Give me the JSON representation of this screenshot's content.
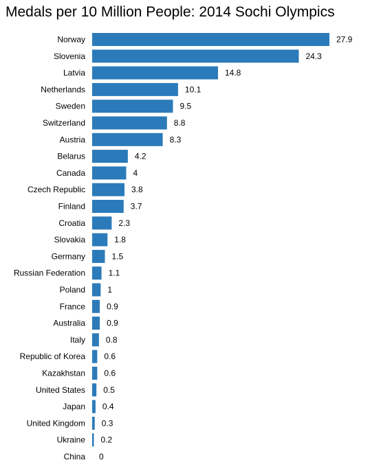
{
  "colors": {
    "bar": "#2b7bba"
  },
  "chart_data": {
    "type": "bar",
    "orientation": "horizontal",
    "title": "Medals per 10 Million People: 2014 Sochi Olympics",
    "xlabel": "",
    "ylabel": "",
    "xlim": [
      0,
      27.9
    ],
    "grid": false,
    "categories": [
      "Norway",
      "Slovenia",
      "Latvia",
      "Netherlands",
      "Sweden",
      "Switzerland",
      "Austria",
      "Belarus",
      "Canada",
      "Czech Republic",
      "Finland",
      "Croatia",
      "Slovakia",
      "Germany",
      "Russian Federation",
      "Poland",
      "France",
      "Australia",
      "Italy",
      "Republic of Korea",
      "Kazakhstan",
      "United States",
      "Japan",
      "United Kingdom",
      "Ukraine",
      "China"
    ],
    "values": [
      27.9,
      24.3,
      14.8,
      10.1,
      9.5,
      8.8,
      8.3,
      4.2,
      4,
      3.8,
      3.7,
      2.3,
      1.8,
      1.5,
      1.1,
      1,
      0.9,
      0.9,
      0.8,
      0.6,
      0.6,
      0.5,
      0.4,
      0.3,
      0.2,
      0
    ],
    "value_labels": [
      "27.9",
      "24.3",
      "14.8",
      "10.1",
      "9.5",
      "8.8",
      "8.3",
      "4.2",
      "4",
      "3.8",
      "3.7",
      "2.3",
      "1.8",
      "1.5",
      "1.1",
      "1",
      "0.9",
      "0.9",
      "0.8",
      "0.6",
      "0.6",
      "0.5",
      "0.4",
      "0.3",
      "0.2",
      "0"
    ]
  }
}
